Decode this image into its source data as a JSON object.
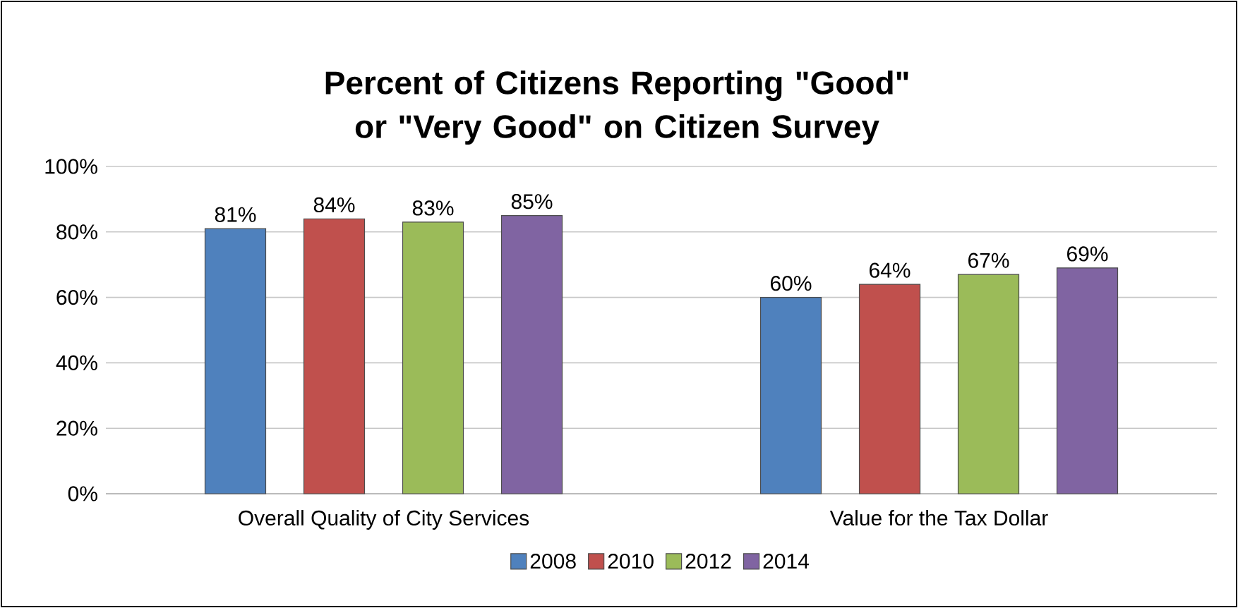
{
  "chart_data": {
    "type": "bar",
    "title": "Percent of Citizens Reporting \"Good\" or \"Very Good\" on Citizen Survey",
    "categories": [
      "Overall Quality of City Services",
      "Value for the Tax Dollar"
    ],
    "series": [
      {
        "name": "2008",
        "color": "#4f81bd",
        "values": [
          81,
          60
        ],
        "value_labels": [
          "81%",
          "60%"
        ]
      },
      {
        "name": "2010",
        "color": "#c0504d",
        "values": [
          84,
          64
        ],
        "value_labels": [
          "84%",
          "64%"
        ]
      },
      {
        "name": "2012",
        "color": "#9bbb59",
        "values": [
          83,
          67
        ],
        "value_labels": [
          "83%",
          "67%"
        ]
      },
      {
        "name": "2014",
        "color": "#8064a2",
        "values": [
          85,
          69
        ],
        "value_labels": [
          "85%",
          "69%"
        ]
      }
    ],
    "ylim": [
      0,
      100
    ],
    "yticks": [
      {
        "value": 0,
        "label": "0%"
      },
      {
        "value": 20,
        "label": "20%"
      },
      {
        "value": 40,
        "label": "40%"
      },
      {
        "value": 60,
        "label": "60%"
      },
      {
        "value": 80,
        "label": "80%"
      },
      {
        "value": 100,
        "label": "100%"
      }
    ],
    "grid": "y",
    "legend": "bottom"
  }
}
